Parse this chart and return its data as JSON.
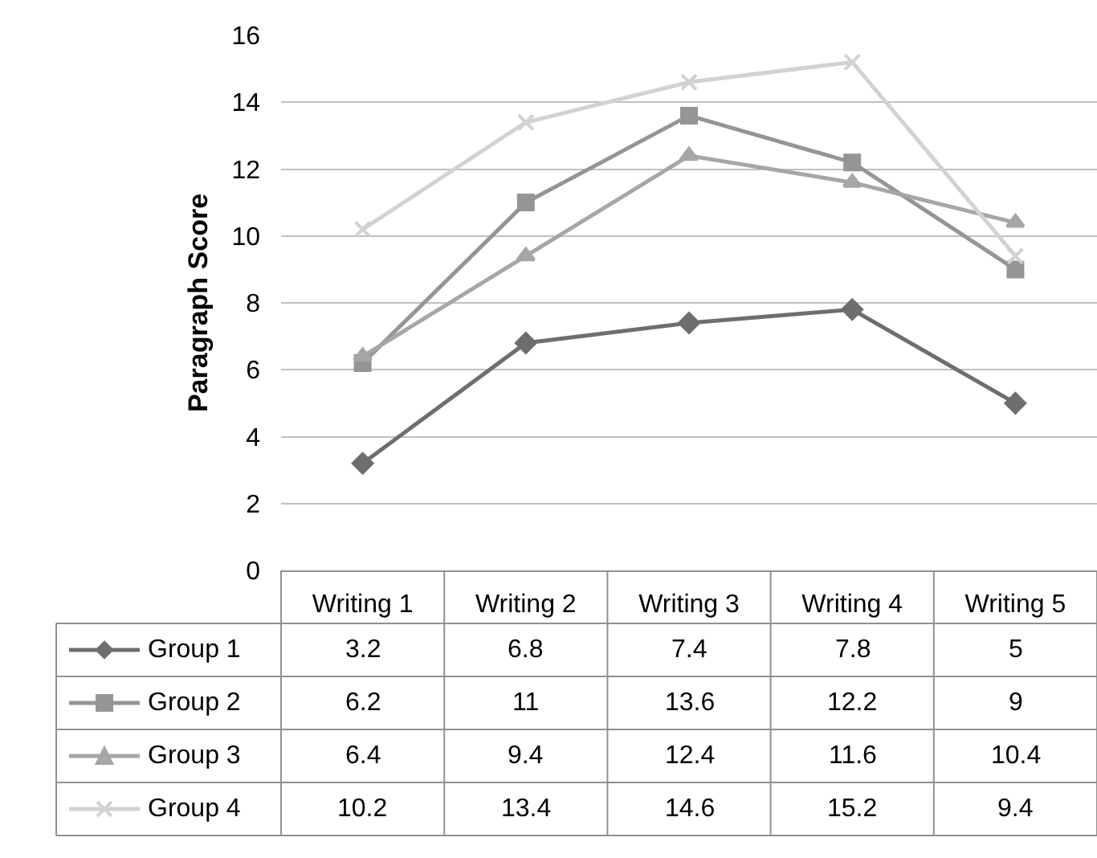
{
  "chart_data": {
    "type": "line",
    "ylabel": "Paragraph Score",
    "categories": [
      "Writing 1",
      "Writing 2",
      "Writing 3",
      "Writing 4",
      "Writing 5"
    ],
    "series": [
      {
        "name": "Group 1",
        "color": "#6e6e6e",
        "marker": "diamond",
        "values": [
          3.2,
          6.8,
          7.4,
          7.8,
          5
        ]
      },
      {
        "name": "Group 2",
        "color": "#959595",
        "marker": "square",
        "values": [
          6.2,
          11,
          13.6,
          12.2,
          9
        ]
      },
      {
        "name": "Group 3",
        "color": "#a6a6a6",
        "marker": "triangle",
        "values": [
          6.4,
          9.4,
          12.4,
          11.6,
          10.4
        ]
      },
      {
        "name": "Group 4",
        "color": "#d2d2d2",
        "marker": "cross",
        "values": [
          10.2,
          13.4,
          14.6,
          15.2,
          9.4
        ]
      }
    ],
    "ylim": [
      0,
      16
    ],
    "yticks": [
      0,
      2,
      4,
      6,
      8,
      10,
      12,
      14,
      16
    ],
    "grid": "y",
    "data_labels": true,
    "legend": "bottom left"
  }
}
